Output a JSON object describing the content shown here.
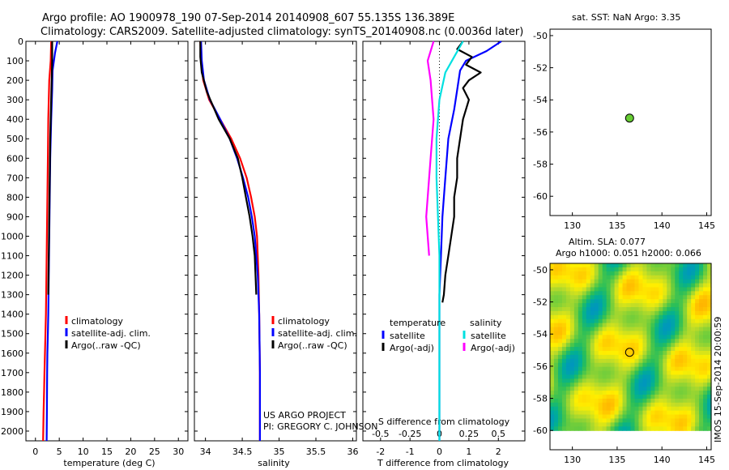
{
  "header": {
    "line1": "Argo profile: AO 1900978_190 07-Sep-2014 20140908_607 55.135S 136.389E",
    "line2": "Climatology: CARS2009. Satellite-adjusted climatology: synTS_20140908.nc (0.0036d later)"
  },
  "side_stamp": "IMOS 15-Sep-2014 20:00:59",
  "project": {
    "line1": "US ARGO PROJECT",
    "line2": "PI: GREGORY C. JOHNSON"
  },
  "colors": {
    "climatology": "#ff0000",
    "satellite": "#0000ff",
    "argo": "#000000",
    "s_satellite": "#00e0e0",
    "s_argo": "#ff00ff",
    "marker": "#66cc33"
  },
  "chart_data": [
    {
      "type": "line",
      "name": "temperature",
      "xlabel": "temperature (deg C)",
      "xticks": [
        "0",
        "5",
        "10",
        "15",
        "20",
        "25",
        "30"
      ],
      "xlim": [
        -2,
        32
      ],
      "ylim": [
        2050,
        0
      ],
      "yticks": [
        "0",
        "100",
        "200",
        "300",
        "400",
        "500",
        "600",
        "700",
        "800",
        "900",
        "1000",
        "1100",
        "1200",
        "1300",
        "1400",
        "1500",
        "1600",
        "1700",
        "1800",
        "1900",
        "2000"
      ],
      "legend": [
        "climatology",
        "satellite-adj. clim.",
        "Argo(..raw -QC)"
      ],
      "series": [
        {
          "name": "climatology",
          "color": "#ff0000",
          "x": [
            3.3,
            3.2,
            2.9,
            2.7,
            2.6,
            2.5,
            2.4,
            2.3,
            2.2,
            2.1,
            2.0,
            1.9,
            1.8,
            1.7,
            1.6
          ],
          "y": [
            0,
            100,
            200,
            400,
            600,
            800,
            1000,
            1200,
            1400,
            1500,
            1600,
            1700,
            1800,
            1900,
            2050
          ]
        },
        {
          "name": "satellite-adj. clim.",
          "color": "#0000ff",
          "x": [
            4.6,
            4.1,
            3.6,
            3.5,
            3.3,
            3.1,
            3.0,
            2.9,
            2.8,
            2.7,
            2.6,
            2.5,
            2.45,
            2.4,
            2.35
          ],
          "y": [
            0,
            60,
            150,
            250,
            400,
            600,
            800,
            1000,
            1200,
            1400,
            1500,
            1600,
            1700,
            1900,
            2050
          ]
        },
        {
          "name": "Argo(..raw -QC)",
          "color": "#000000",
          "x": [
            3.5,
            3.5,
            3.4,
            3.3,
            3.1,
            3.0,
            2.9,
            2.8,
            2.7
          ],
          "y": [
            0,
            100,
            200,
            300,
            500,
            700,
            900,
            1100,
            1300
          ]
        }
      ]
    },
    {
      "type": "line",
      "name": "salinity",
      "xlabel": "salinity",
      "xticks": [
        "34",
        "34.5",
        "35",
        "35.5",
        "36"
      ],
      "xlim": [
        33.85,
        36.05
      ],
      "ylim": [
        2050,
        0
      ],
      "legend": [
        "climatology",
        "satellite-adj. clim.",
        "Argo(..raw -QC)"
      ],
      "series": [
        {
          "name": "climatology",
          "color": "#ff0000",
          "x": [
            33.93,
            33.94,
            33.97,
            34.05,
            34.2,
            34.35,
            34.47,
            34.56,
            34.62,
            34.67,
            34.7,
            34.72,
            34.73,
            34.74,
            34.74
          ],
          "y": [
            0,
            100,
            200,
            300,
            400,
            500,
            600,
            700,
            800,
            900,
            1000,
            1200,
            1400,
            1700,
            2050
          ]
        },
        {
          "name": "satellite-adj. clim.",
          "color": "#0000ff",
          "x": [
            33.94,
            33.95,
            33.98,
            34.06,
            34.2,
            34.33,
            34.43,
            34.51,
            34.58,
            34.63,
            34.67,
            34.71,
            34.73,
            34.74,
            34.74
          ],
          "y": [
            0,
            100,
            200,
            300,
            400,
            500,
            600,
            700,
            800,
            900,
            1000,
            1200,
            1400,
            1700,
            2050
          ]
        },
        {
          "name": "Argo(..raw -QC)",
          "color": "#000000",
          "x": [
            33.93,
            33.93,
            33.95,
            34.02,
            34.18,
            34.33,
            34.44,
            34.5,
            34.55,
            34.6,
            34.64,
            34.67,
            34.69
          ],
          "y": [
            0,
            80,
            160,
            260,
            400,
            500,
            600,
            700,
            800,
            900,
            1000,
            1100,
            1300
          ]
        }
      ]
    },
    {
      "type": "line",
      "name": "differences",
      "xlabel": "T difference from climatology",
      "xlabel_top": "S difference from climatology",
      "xticks": [
        "-2",
        "-1",
        "0",
        "1",
        "2"
      ],
      "xticks_top": [
        "-0.5",
        "-0.25",
        "0",
        "0.25",
        "0.5"
      ],
      "xlim": [
        -2.6,
        2.9
      ],
      "ylim": [
        2050,
        0
      ],
      "legend_left_title": "temperature",
      "legend_right_title": "salinity",
      "legend_left": [
        "satellite",
        "Argo(-adj)"
      ],
      "legend_right": [
        "satellite",
        "Argo(-adj)"
      ],
      "series": [
        {
          "name": "T satellite",
          "color": "#0000ff",
          "x": [
            2.1,
            1.6,
            0.9,
            0.7,
            0.6,
            0.5,
            0.3,
            0.2,
            0.1,
            0.05,
            0.0,
            0.0,
            0.0
          ],
          "y": [
            0,
            50,
            100,
            150,
            250,
            350,
            500,
            700,
            900,
            1100,
            1300,
            1600,
            2050
          ]
        },
        {
          "name": "T Argo(-adj)",
          "color": "#000000",
          "x": [
            0.8,
            0.6,
            1.1,
            0.9,
            1.4,
            1.0,
            0.8,
            1.0,
            0.8,
            0.7,
            0.6,
            0.6,
            0.5,
            0.5,
            0.4,
            0.3,
            0.2,
            0.15,
            0.1
          ],
          "y": [
            0,
            40,
            80,
            120,
            160,
            200,
            240,
            300,
            400,
            500,
            600,
            700,
            800,
            900,
            1000,
            1100,
            1200,
            1300,
            1340
          ]
        },
        {
          "name": "S satellite",
          "color": "#00e0e0",
          "x": [
            0.8,
            0.5,
            0.2,
            0.0,
            -0.1,
            -0.1,
            -0.05,
            0.0,
            0.0,
            0.0
          ],
          "y": [
            0,
            80,
            160,
            300,
            500,
            700,
            900,
            1100,
            1500,
            2050
          ]
        },
        {
          "name": "S Argo(-adj)",
          "color": "#ff00ff",
          "x": [
            -0.2,
            -0.4,
            -0.3,
            -0.2,
            -0.3,
            -0.4,
            -0.45,
            -0.4,
            -0.35
          ],
          "y": [
            0,
            100,
            200,
            400,
            600,
            800,
            900,
            1000,
            1100
          ]
        }
      ]
    },
    {
      "type": "scatter",
      "name": "sst-map",
      "title": "sat. SST: NaN Argo: 3.35",
      "xticks": [
        "130",
        "135",
        "140",
        "145"
      ],
      "yticks": [
        "-50",
        "-52",
        "-54",
        "-56",
        "-58",
        "-60"
      ],
      "xlim": [
        127.5,
        145.5
      ],
      "ylim": [
        -61.2,
        -49.6
      ],
      "points": [
        {
          "x": 136.389,
          "y": -55.135
        }
      ]
    },
    {
      "type": "heatmap",
      "name": "sla-map",
      "title": "Altim. SLA: 0.077",
      "subtitle": "Argo h1000: 0.051 h2000: 0.066",
      "xticks": [
        "130",
        "135",
        "140",
        "145"
      ],
      "yticks": [
        "-50",
        "-52",
        "-54",
        "-56",
        "-58",
        "-60"
      ],
      "xlim": [
        127.5,
        145.5
      ],
      "ylim": [
        -61.2,
        -49.6
      ],
      "points": [
        {
          "x": 136.389,
          "y": -55.135
        }
      ]
    }
  ]
}
